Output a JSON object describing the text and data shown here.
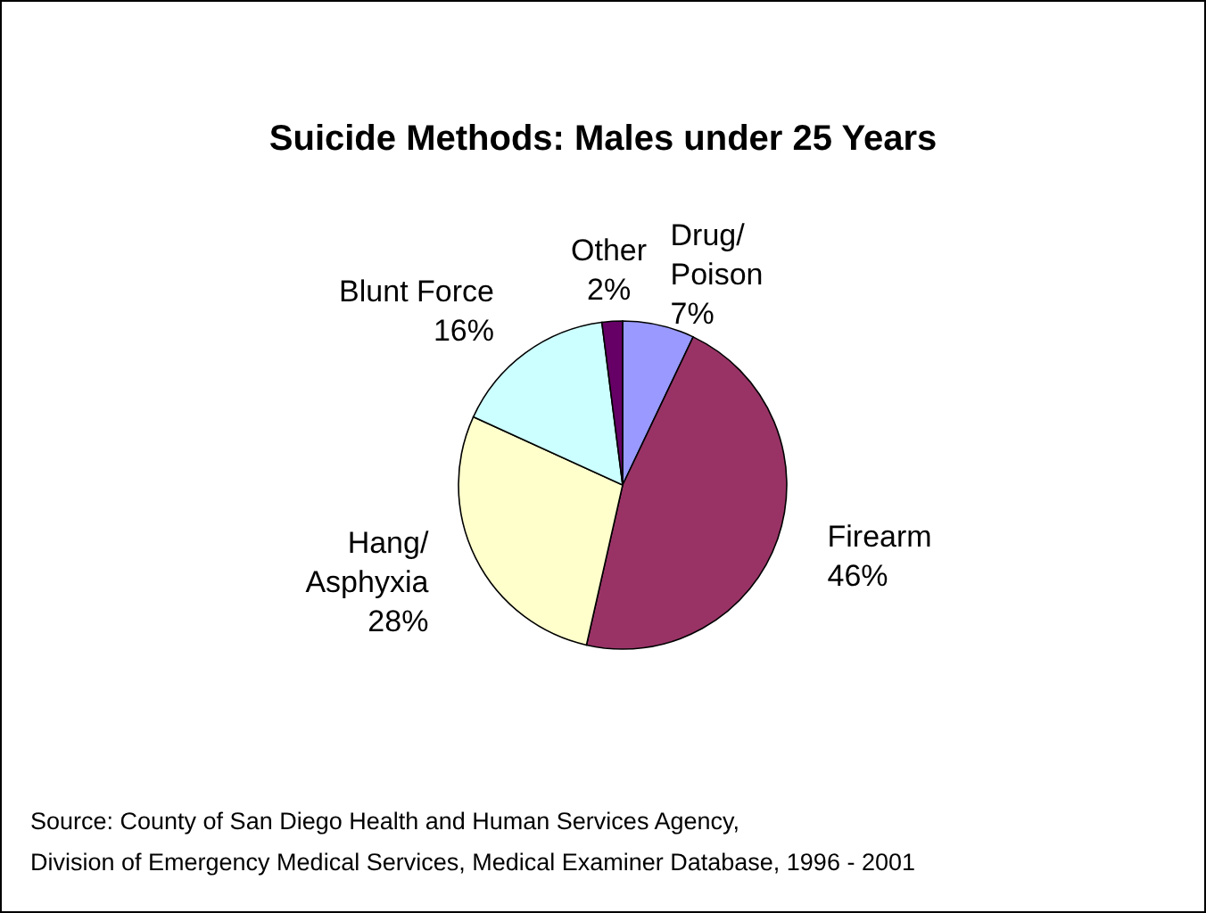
{
  "chart_data": {
    "type": "pie",
    "title": "Suicide Methods: Males under 25 Years",
    "categories": [
      "Drug/\nPoison",
      "Firearm",
      "Hang/\nAsphyxia",
      "Blunt Force",
      "Other"
    ],
    "values": [
      7,
      46,
      28,
      16,
      2
    ],
    "value_labels": [
      "7%",
      "46%",
      "28%",
      "16%",
      "2%"
    ],
    "colors": [
      "#9999ff",
      "#993366",
      "#ffffcc",
      "#ccffff",
      "#660066"
    ],
    "annotations": [
      "Source: County of San Diego Health and Human Services Agency,",
      "Division of Emergency Medical Services, Medical Examiner Database, 1996 - 2001"
    ]
  }
}
